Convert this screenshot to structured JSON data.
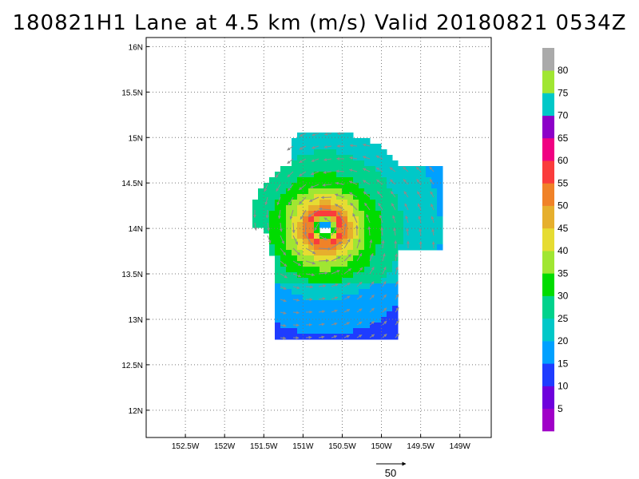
{
  "title": "180821H1 Lane at 4.5 km (m/s) Valid 20180821 0534Z",
  "map": {
    "lon_range": [
      -153.0,
      -148.6
    ],
    "lat_range": [
      11.7,
      16.1
    ],
    "lon_ticks": [
      {
        "value": -152.5,
        "label": "152.5W"
      },
      {
        "value": -152.0,
        "label": "152W"
      },
      {
        "value": -151.5,
        "label": "151.5W"
      },
      {
        "value": -151.0,
        "label": "151W"
      },
      {
        "value": -150.5,
        "label": "150.5W"
      },
      {
        "value": -150.0,
        "label": "150W"
      },
      {
        "value": -149.5,
        "label": "149.5W"
      },
      {
        "value": -149.0,
        "label": "149W"
      }
    ],
    "lat_ticks": [
      {
        "value": 12.0,
        "label": "12N"
      },
      {
        "value": 12.5,
        "label": "12.5N"
      },
      {
        "value": 13.0,
        "label": "13N"
      },
      {
        "value": 13.5,
        "label": "13.5N"
      },
      {
        "value": 14.0,
        "label": "14N"
      },
      {
        "value": 14.5,
        "label": "14.5N"
      },
      {
        "value": 15.0,
        "label": "15N"
      },
      {
        "value": 15.5,
        "label": "15.5N"
      },
      {
        "value": 16.0,
        "label": "16N"
      }
    ],
    "grid": "dotted",
    "storm_center": {
      "lon": -150.72,
      "lat": 14.0
    },
    "radius_max_wind_deg": 0.2
  },
  "colorbar": {
    "levels": [
      "5",
      "10",
      "15",
      "20",
      "25",
      "30",
      "35",
      "40",
      "45",
      "50",
      "55",
      "60",
      "65",
      "70",
      "75",
      "80"
    ],
    "colors": [
      "#a000c8",
      "#6e00dc",
      "#1e3cff",
      "#00a0ff",
      "#00c8c8",
      "#00d28c",
      "#00dc00",
      "#a0e632",
      "#e6dc32",
      "#e6af2d",
      "#f08228",
      "#fa3c3c",
      "#f00082",
      "#8c00c8",
      "#00c8c8",
      "#a0e632",
      "#aaaaaa"
    ]
  },
  "reference_vector": {
    "label": "50",
    "value": 50
  }
}
